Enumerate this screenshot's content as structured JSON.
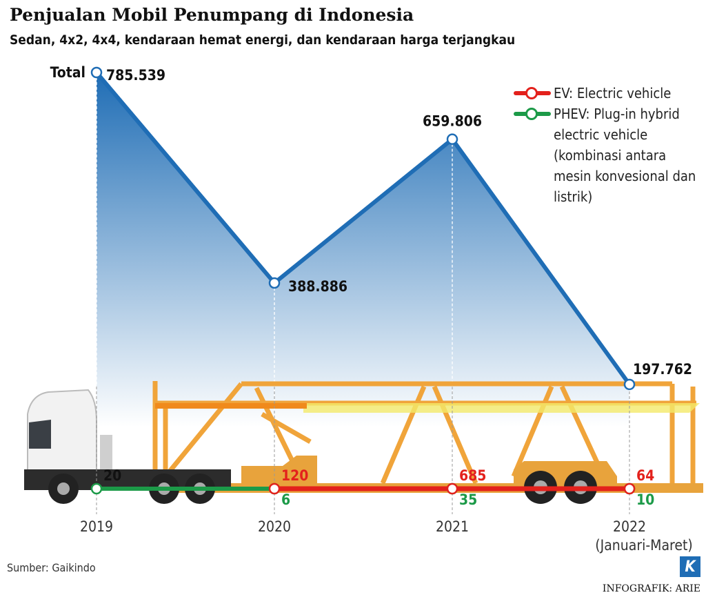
{
  "chart_data": {
    "type": "line",
    "title": "Penjualan Mobil Penumpang di Indonesia",
    "subtitle": "Sedan, 4x2, 4x4, kendaraan hemat energi, dan kendaraan harga terjangkau",
    "categories": [
      "2019",
      "2020",
      "2021",
      "2022"
    ],
    "category_note": "(Januari-Maret)",
    "series": [
      {
        "name": "Total",
        "color": "#1f6db5",
        "values": [
          785539,
          388886,
          659806,
          197762
        ],
        "value_labels": [
          "785.539",
          "388.886",
          "659.806",
          "197.762"
        ]
      },
      {
        "name": "EV: Electric vehicle",
        "color": "#e3211c",
        "values": [
          null,
          120,
          685,
          64
        ]
      },
      {
        "name": "PHEV: Plug-in hybrid electric vehicle",
        "color": "#1c9a48",
        "values": [
          20,
          6,
          35,
          10
        ]
      }
    ],
    "legend_note": "(kombinasi antara mesin konvesional dan listrik)",
    "source": "Sumber: Gaikindo",
    "credit": "INFOGRAFIK: ARIE",
    "logo": "K"
  }
}
